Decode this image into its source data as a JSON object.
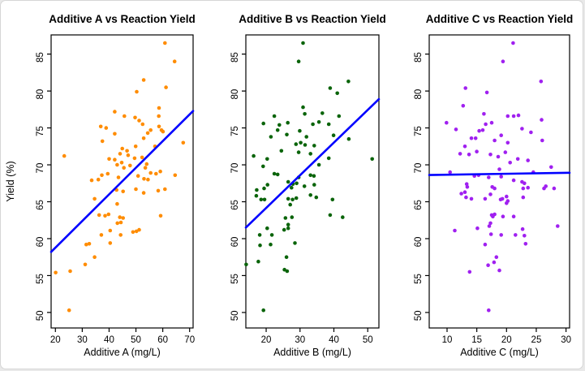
{
  "window": {
    "background": "#ffffff",
    "frame_color": "#d6d6d6"
  },
  "figure": {
    "ylabel_shared": "Yield (%)"
  },
  "chart_data": [
    {
      "type": "scatter",
      "title": "Additive A vs Reaction Yield",
      "xlabel": "Additive A (mg/L)",
      "ylabel": "Yield (%)",
      "point_color": "#FF8C00",
      "line_color": "#0000FF",
      "axis_color": "#000000",
      "grid": false,
      "xlim": [
        18.4,
        71.3
      ],
      "ylim": [
        47.9,
        87.6
      ],
      "xticks": [
        20,
        30,
        40,
        50,
        60,
        70
      ],
      "yticks": [
        50,
        55,
        60,
        65,
        70,
        75,
        80,
        85
      ],
      "regression_line": {
        "x": [
          18.4,
          71.3
        ],
        "y": [
          58.2,
          77.3
        ]
      },
      "points": [
        [
          60.8,
          86.5
        ],
        [
          64.4,
          84.0
        ],
        [
          52.9,
          81.5
        ],
        [
          61.2,
          80.5
        ],
        [
          50.3,
          79.9
        ],
        [
          58.6,
          77.7
        ],
        [
          42.1,
          77.2
        ],
        [
          45.7,
          76.6
        ],
        [
          49.7,
          76.4
        ],
        [
          58.5,
          76.6
        ],
        [
          51.2,
          76.0
        ],
        [
          52.5,
          75.5
        ],
        [
          36.9,
          75.2
        ],
        [
          38.9,
          75.0
        ],
        [
          58.6,
          75.2
        ],
        [
          60.1,
          74.5
        ],
        [
          54.4,
          74.3
        ],
        [
          42.1,
          74.2
        ],
        [
          55.5,
          74.7
        ],
        [
          59.5,
          74.7
        ],
        [
          37.5,
          73.2
        ],
        [
          52.9,
          73.6
        ],
        [
          67.6,
          73.0
        ],
        [
          57.1,
          72.5
        ],
        [
          49.9,
          72.5
        ],
        [
          23.3,
          71.2
        ],
        [
          44.9,
          72.2
        ],
        [
          46.7,
          71.9
        ],
        [
          44.1,
          71.5
        ],
        [
          47.1,
          71.3
        ],
        [
          40.0,
          70.8
        ],
        [
          42.1,
          70.7
        ],
        [
          49.5,
          70.9
        ],
        [
          52.3,
          71.0
        ],
        [
          54.0,
          70.1
        ],
        [
          43.0,
          70.0
        ],
        [
          44.7,
          70.3
        ],
        [
          45.5,
          69.6
        ],
        [
          47.8,
          69.9
        ],
        [
          53.5,
          69.6
        ],
        [
          59.1,
          69.1
        ],
        [
          55.5,
          68.9
        ],
        [
          57.5,
          68.8
        ],
        [
          50.8,
          68.5
        ],
        [
          53.0,
          68.1
        ],
        [
          54.5,
          68.0
        ],
        [
          64.6,
          68.6
        ],
        [
          37.3,
          68.6
        ],
        [
          39.5,
          68.8
        ],
        [
          43.5,
          68.3
        ],
        [
          33.5,
          67.9
        ],
        [
          36.0,
          68.0
        ],
        [
          42.8,
          66.6
        ],
        [
          45.2,
          66.4
        ],
        [
          50.0,
          66.7
        ],
        [
          52.9,
          66.2
        ],
        [
          58.3,
          66.5
        ],
        [
          60.8,
          66.7
        ],
        [
          34.6,
          65.4
        ],
        [
          43.0,
          64.7
        ],
        [
          36.3,
          63.2
        ],
        [
          38.5,
          63.1
        ],
        [
          39.8,
          63.3
        ],
        [
          44.0,
          62.9
        ],
        [
          45.2,
          62.8
        ],
        [
          59.2,
          63.1
        ],
        [
          43.1,
          62.1
        ],
        [
          44.4,
          62.2
        ],
        [
          40.4,
          61.1
        ],
        [
          37.1,
          60.5
        ],
        [
          44.3,
          60.5
        ],
        [
          48.9,
          60.9
        ],
        [
          50.2,
          61.0
        ],
        [
          51.2,
          61.2
        ],
        [
          31.5,
          59.2
        ],
        [
          32.6,
          59.3
        ],
        [
          40.4,
          59.4
        ],
        [
          34.6,
          57.5
        ],
        [
          31.1,
          56.5
        ],
        [
          20.1,
          55.4
        ],
        [
          25.5,
          55.6
        ],
        [
          25.1,
          50.3
        ]
      ]
    },
    {
      "type": "scatter",
      "title": "Additive B vs Reaction Yield",
      "xlabel": "Additive B (mg/L)",
      "ylabel": "",
      "point_color": "#0A640A",
      "line_color": "#0000FF",
      "axis_color": "#000000",
      "grid": false,
      "xlim": [
        14.0,
        53.3
      ],
      "ylim": [
        47.9,
        87.6
      ],
      "xticks": [
        20,
        30,
        40,
        50
      ],
      "yticks": [
        50,
        55,
        60,
        65,
        70,
        75,
        80,
        85
      ],
      "regression_line": {
        "x": [
          14.0,
          53.3
        ],
        "y": [
          61.5,
          78.9
        ]
      },
      "points": [
        [
          30.9,
          86.5
        ],
        [
          29.6,
          84.0
        ],
        [
          44.3,
          81.3
        ],
        [
          38.9,
          80.4
        ],
        [
          41.0,
          79.7
        ],
        [
          30.9,
          77.8
        ],
        [
          22.4,
          76.6
        ],
        [
          31.4,
          76.9
        ],
        [
          36.6,
          77.0
        ],
        [
          41.5,
          76.6
        ],
        [
          19.2,
          75.6
        ],
        [
          23.9,
          75.4
        ],
        [
          26.4,
          75.7
        ],
        [
          33.8,
          75.5
        ],
        [
          35.6,
          75.8
        ],
        [
          38.5,
          75.5
        ],
        [
          23.4,
          74.7
        ],
        [
          29.9,
          74.6
        ],
        [
          26.1,
          74.1
        ],
        [
          21.4,
          73.8
        ],
        [
          31.9,
          73.8
        ],
        [
          39.9,
          74.0
        ],
        [
          44.4,
          73.5
        ],
        [
          28.8,
          72.8
        ],
        [
          30.2,
          73.0
        ],
        [
          31.5,
          72.7
        ],
        [
          34.2,
          72.6
        ],
        [
          24.5,
          71.9
        ],
        [
          29.6,
          71.7
        ],
        [
          33.1,
          71.5
        ],
        [
          16.3,
          71.2
        ],
        [
          20.3,
          70.8
        ],
        [
          51.3,
          70.8
        ],
        [
          38.5,
          70.9
        ],
        [
          19.1,
          69.8
        ],
        [
          35.6,
          70.0
        ],
        [
          22.4,
          68.8
        ],
        [
          23.4,
          68.7
        ],
        [
          33.1,
          68.6
        ],
        [
          34.1,
          68.5
        ],
        [
          29.6,
          68.3
        ],
        [
          20.4,
          67.3
        ],
        [
          26.5,
          67.7
        ],
        [
          27.9,
          67.4
        ],
        [
          29.0,
          67.5
        ],
        [
          31.3,
          67.1
        ],
        [
          34.2,
          67.3
        ],
        [
          19.4,
          66.8
        ],
        [
          27.5,
          66.9
        ],
        [
          17.2,
          66.6
        ],
        [
          17.1,
          65.8
        ],
        [
          18.5,
          65.3
        ],
        [
          19.5,
          65.3
        ],
        [
          26.5,
          65.4
        ],
        [
          27.8,
          65.3
        ],
        [
          28.9,
          65.5
        ],
        [
          33.1,
          65.9
        ],
        [
          34.8,
          65.6
        ],
        [
          39.6,
          65.3
        ],
        [
          27.1,
          64.6
        ],
        [
          25.7,
          62.8
        ],
        [
          27.6,
          62.9
        ],
        [
          38.9,
          63.2
        ],
        [
          42.6,
          62.9
        ],
        [
          26.5,
          61.9
        ],
        [
          25.3,
          61.2
        ],
        [
          26.5,
          61.4
        ],
        [
          20.3,
          61.4
        ],
        [
          18.1,
          60.5
        ],
        [
          21.7,
          60.5
        ],
        [
          18.2,
          59.1
        ],
        [
          21.3,
          59.2
        ],
        [
          28.5,
          59.4
        ],
        [
          26.0,
          57.5
        ],
        [
          14.1,
          56.5
        ],
        [
          17.7,
          56.9
        ],
        [
          25.4,
          55.8
        ],
        [
          26.2,
          55.6
        ],
        [
          19.2,
          50.3
        ]
      ]
    },
    {
      "type": "scatter",
      "title": "Additive C vs Reaction Yield",
      "xlabel": "Additive C (mg/L)",
      "ylabel": "",
      "point_color": "#A020F0",
      "line_color": "#0000FF",
      "axis_color": "#000000",
      "grid": false,
      "xlim": [
        7.0,
        30.6
      ],
      "ylim": [
        47.9,
        87.6
      ],
      "xticks": [
        10,
        15,
        20,
        25,
        30
      ],
      "yticks": [
        50,
        55,
        60,
        65,
        70,
        75,
        80,
        85
      ],
      "regression_line": {
        "x": [
          7.0,
          30.6
        ],
        "y": [
          68.62,
          68.93
        ]
      },
      "points": [
        [
          21.1,
          86.5
        ],
        [
          19.4,
          84.0
        ],
        [
          25.8,
          81.3
        ],
        [
          13.1,
          80.4
        ],
        [
          16.7,
          79.8
        ],
        [
          12.7,
          78.0
        ],
        [
          25.9,
          76.1
        ],
        [
          16.2,
          76.9
        ],
        [
          20.2,
          76.6
        ],
        [
          21.2,
          76.6
        ],
        [
          22.0,
          76.7
        ],
        [
          9.9,
          75.7
        ],
        [
          16.5,
          75.5
        ],
        [
          17.5,
          75.7
        ],
        [
          22.6,
          74.9
        ],
        [
          11.5,
          74.8
        ],
        [
          15.4,
          74.6
        ],
        [
          16.0,
          74.7
        ],
        [
          24.1,
          74.4
        ],
        [
          14.1,
          73.6
        ],
        [
          14.8,
          73.6
        ],
        [
          19.1,
          74.0
        ],
        [
          18.0,
          73.3
        ],
        [
          20.2,
          73.0
        ],
        [
          26.0,
          73.3
        ],
        [
          13.0,
          72.5
        ],
        [
          12.2,
          71.5
        ],
        [
          13.7,
          71.4
        ],
        [
          15.0,
          71.8
        ],
        [
          17.3,
          71.4
        ],
        [
          18.6,
          71.1
        ],
        [
          19.8,
          71.7
        ],
        [
          21.9,
          70.8
        ],
        [
          23.6,
          70.6
        ],
        [
          20.6,
          70.3
        ],
        [
          27.5,
          69.7
        ],
        [
          10.5,
          69.0
        ],
        [
          18.8,
          69.4
        ],
        [
          24.5,
          69.0
        ],
        [
          14.6,
          68.5
        ],
        [
          15.3,
          68.6
        ],
        [
          17.0,
          68.3
        ],
        [
          19.1,
          68.4
        ],
        [
          21.2,
          67.9
        ],
        [
          22.6,
          67.7
        ],
        [
          23.0,
          67.5
        ],
        [
          13.3,
          67.4
        ],
        [
          13.4,
          67.0
        ],
        [
          17.6,
          67.0
        ],
        [
          26.6,
          67.1
        ],
        [
          28.0,
          66.8
        ],
        [
          12.4,
          66.1
        ],
        [
          13.0,
          66.3
        ],
        [
          13.2,
          65.6
        ],
        [
          14.1,
          65.4
        ],
        [
          16.4,
          65.4
        ],
        [
          17.3,
          66.0
        ],
        [
          18.0,
          66.8
        ],
        [
          19.0,
          65.3
        ],
        [
          19.3,
          65.4
        ],
        [
          20.0,
          65.7
        ],
        [
          20.2,
          65.1
        ],
        [
          20.0,
          64.8
        ],
        [
          22.8,
          65.6
        ],
        [
          22.8,
          66.8
        ],
        [
          23.6,
          66.9
        ],
        [
          26.3,
          66.8
        ],
        [
          17.5,
          63.2
        ],
        [
          18.0,
          63.3
        ],
        [
          17.7,
          63.0
        ],
        [
          19.4,
          63.0
        ],
        [
          21.2,
          63.0
        ],
        [
          17.3,
          62.1
        ],
        [
          17.1,
          61.7
        ],
        [
          15.1,
          61.4
        ],
        [
          11.3,
          61.1
        ],
        [
          17.4,
          60.6
        ],
        [
          19.1,
          60.5
        ],
        [
          21.5,
          60.5
        ],
        [
          22.7,
          61.3
        ],
        [
          23.0,
          60.4
        ],
        [
          28.6,
          61.7
        ],
        [
          16.4,
          59.2
        ],
        [
          23.2,
          59.3
        ],
        [
          18.3,
          57.5
        ],
        [
          16.9,
          56.4
        ],
        [
          17.9,
          56.8
        ],
        [
          13.8,
          55.5
        ],
        [
          18.8,
          55.7
        ],
        [
          17.0,
          50.3
        ]
      ]
    }
  ]
}
